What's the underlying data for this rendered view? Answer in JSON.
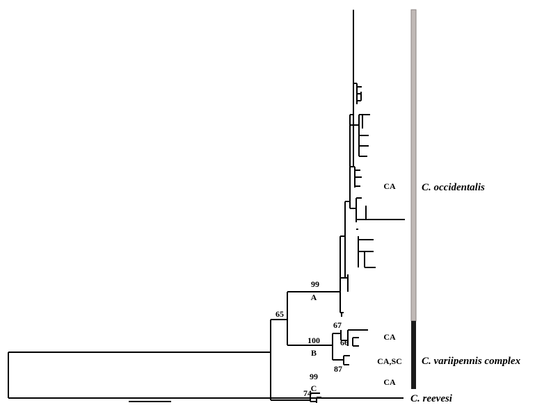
{
  "bootstrap": [
    99,
    65,
    100,
    99,
    67,
    66,
    87,
    74
  ],
  "clades": [
    "A",
    "B",
    "C"
  ],
  "regions": [
    "CA",
    "CA",
    "CA,SC",
    "CA"
  ],
  "taxa": [
    "C. occidentalis",
    "C. variipennis complex",
    "C. reevesi"
  ]
}
